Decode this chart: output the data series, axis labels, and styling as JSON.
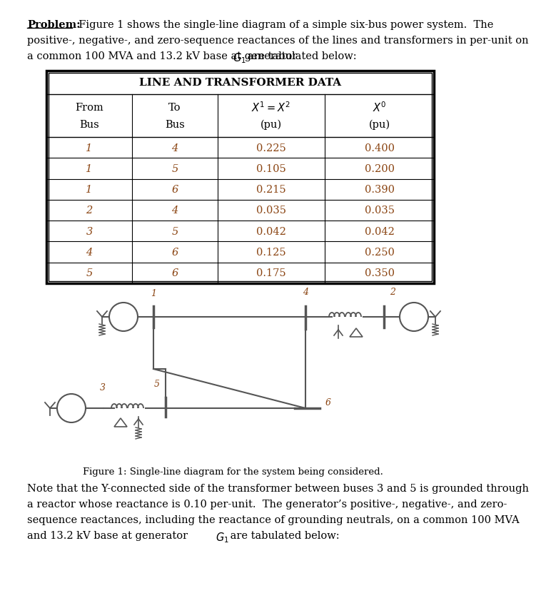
{
  "problem_bold": "Problem:",
  "intro_line1": "  Figure 1 shows the single-line diagram of a simple six-bus power system.  The",
  "intro_line2": "positive-, negative-, and zero-sequence reactances of the lines and transformers in per-unit on",
  "intro_line3_a": "a common 100 MVA and 13.2 kV base at generator ",
  "intro_line3_b": " are tabulated below:",
  "table_title": "LINE AND TRANSFORMER DATA",
  "col_headers": [
    [
      "From",
      "Bus"
    ],
    [
      "To",
      "Bus"
    ],
    [
      "$X^1 = X^2$",
      "(pu)"
    ],
    [
      "$X^0$",
      "(pu)"
    ]
  ],
  "table_data": [
    [
      1,
      4,
      "0.225",
      "0.400"
    ],
    [
      1,
      5,
      "0.105",
      "0.200"
    ],
    [
      1,
      6,
      "0.215",
      "0.390"
    ],
    [
      2,
      4,
      "0.035",
      "0.035"
    ],
    [
      3,
      5,
      "0.042",
      "0.042"
    ],
    [
      4,
      6,
      "0.125",
      "0.250"
    ],
    [
      5,
      6,
      "0.175",
      "0.350"
    ]
  ],
  "fig_caption": "Figure 1: Single-line diagram for the system being considered.",
  "note_line1": "Note that the Y-connected side of the transformer between buses 3 and 5 is grounded through",
  "note_line2": "a reactor whose reactance is 0.10 per-unit.  The generator’s positive-, negative-, and zero-",
  "note_line3": "sequence reactances, including the reactance of grounding neutrals, on a common 100 MVA",
  "note_line4_a": "and 13.2 kV base at generator ",
  "note_line4_b": " are tabulated below:",
  "text_color": "#000000",
  "data_color": "#8B4513",
  "bus_color": "#555555",
  "bg_color": "#ffffff",
  "table_border_lw": 2.0,
  "table_inner_lw": 0.8,
  "diagram_lw": 1.5
}
